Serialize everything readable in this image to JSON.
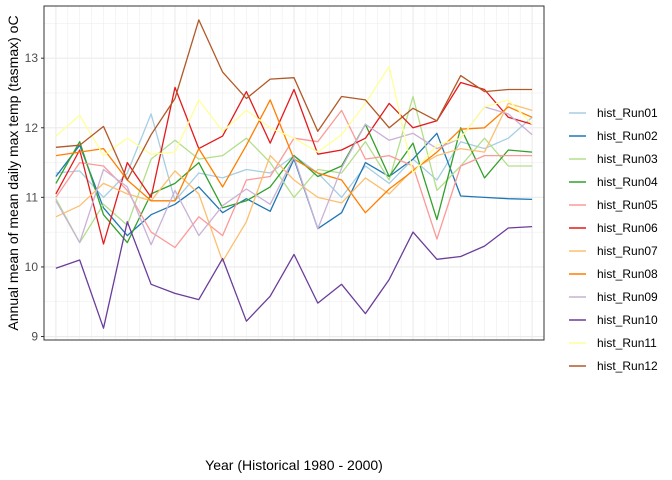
{
  "chart_data": {
    "type": "line",
    "xlabel": "Year (Historical 1980 - 2000)",
    "ylabel": "Annual mean of mean daily max temp (tasmax) oC",
    "ylim": [
      8.95,
      13.75
    ],
    "xlim": [
      0.5,
      21.5
    ],
    "yticks": [
      "9",
      "10",
      "11",
      "12",
      "13"
    ],
    "x_tick_labels": "none",
    "grid": true,
    "legend_position": "right",
    "x": [
      1,
      2,
      3,
      4,
      5,
      6,
      7,
      8,
      9,
      10,
      11,
      12,
      13,
      14,
      15,
      16,
      17,
      18,
      19,
      20,
      21
    ],
    "series": [
      {
        "name": "hist_Run01",
        "color": "#a6cee3",
        "values": [
          11.35,
          11.38,
          11.0,
          11.35,
          12.2,
          10.95,
          11.35,
          11.28,
          11.4,
          11.35,
          11.6,
          11.35,
          11.0,
          11.45,
          11.2,
          11.55,
          11.25,
          11.8,
          11.7,
          11.85,
          12.15
        ]
      },
      {
        "name": "hist_Run02",
        "color": "#1f78b4",
        "values": [
          11.3,
          11.75,
          10.85,
          10.45,
          10.75,
          10.9,
          11.15,
          10.78,
          10.98,
          10.8,
          11.55,
          10.55,
          10.78,
          11.5,
          11.3,
          11.55,
          11.92,
          11.02,
          11.0,
          10.98,
          10.97
        ]
      },
      {
        "name": "hist_Run03",
        "color": "#b2df8a",
        "values": [
          10.98,
          10.35,
          10.9,
          10.6,
          11.55,
          11.82,
          11.55,
          11.6,
          11.85,
          11.5,
          11.0,
          11.4,
          11.35,
          11.8,
          11.25,
          12.45,
          11.1,
          11.45,
          11.85,
          11.45,
          11.45
        ]
      },
      {
        "name": "hist_Run04",
        "color": "#33a02c",
        "values": [
          11.2,
          11.8,
          10.75,
          10.35,
          11.05,
          11.2,
          11.5,
          10.85,
          10.95,
          11.15,
          11.6,
          11.3,
          11.45,
          12.05,
          11.3,
          11.78,
          10.68,
          12.0,
          11.28,
          11.68,
          11.65
        ]
      },
      {
        "name": "hist_Run05",
        "color": "#fb9a99",
        "values": [
          11.0,
          11.5,
          11.45,
          11.1,
          10.5,
          10.28,
          10.72,
          10.45,
          11.25,
          11.3,
          11.85,
          11.8,
          12.25,
          11.55,
          11.6,
          11.45,
          10.4,
          11.45,
          11.6,
          11.6,
          11.6
        ]
      },
      {
        "name": "hist_Run06",
        "color": "#e31a1c",
        "values": [
          11.05,
          11.68,
          10.33,
          11.5,
          11.0,
          12.58,
          11.7,
          11.88,
          12.52,
          11.78,
          12.55,
          11.62,
          11.68,
          11.85,
          12.35,
          12.0,
          12.1,
          12.65,
          12.55,
          12.15,
          12.05
        ]
      },
      {
        "name": "hist_Run07",
        "color": "#fdbf6f",
        "values": [
          10.72,
          10.88,
          11.2,
          11.05,
          10.95,
          11.38,
          11.05,
          10.08,
          10.65,
          11.6,
          11.25,
          11.0,
          10.92,
          11.28,
          11.05,
          11.4,
          11.6,
          11.7,
          11.65,
          12.35,
          12.25
        ]
      },
      {
        "name": "hist_Run08",
        "color": "#ff7f00",
        "values": [
          11.6,
          11.65,
          11.7,
          11.25,
          10.95,
          10.95,
          11.7,
          11.15,
          11.75,
          12.4,
          11.55,
          11.35,
          11.25,
          10.78,
          11.12,
          11.38,
          11.65,
          11.98,
          12.0,
          12.3,
          12.15
        ]
      },
      {
        "name": "hist_Run09",
        "color": "#cab2d6",
        "values": [
          10.95,
          10.35,
          11.4,
          11.15,
          10.32,
          11.1,
          10.45,
          10.88,
          11.12,
          10.9,
          11.58,
          10.55,
          11.42,
          12.05,
          11.82,
          11.92,
          11.7,
          11.85,
          12.3,
          12.2,
          11.9
        ]
      },
      {
        "name": "hist_Run10",
        "color": "#6a3d9a",
        "values": [
          9.98,
          10.1,
          9.12,
          10.65,
          9.75,
          9.62,
          9.53,
          10.12,
          9.22,
          9.58,
          10.18,
          9.48,
          9.75,
          9.33,
          9.82,
          10.5,
          10.11,
          10.15,
          10.3,
          10.56,
          10.58
        ]
      },
      {
        "name": "hist_Run11",
        "color": "#ffff99",
        "values": [
          11.88,
          12.18,
          11.6,
          11.85,
          11.62,
          11.65,
          12.4,
          11.95,
          12.25,
          12.0,
          11.85,
          11.65,
          11.9,
          12.35,
          12.88,
          11.35,
          11.75,
          11.85,
          12.3,
          12.4,
          12.05
        ]
      },
      {
        "name": "hist_Run12",
        "color": "#b15928",
        "values": [
          11.72,
          11.75,
          12.02,
          11.25,
          11.9,
          12.42,
          13.55,
          12.8,
          12.42,
          12.7,
          12.72,
          11.95,
          12.45,
          12.4,
          12.0,
          12.28,
          12.1,
          12.75,
          12.52,
          12.55,
          12.55
        ]
      }
    ]
  }
}
